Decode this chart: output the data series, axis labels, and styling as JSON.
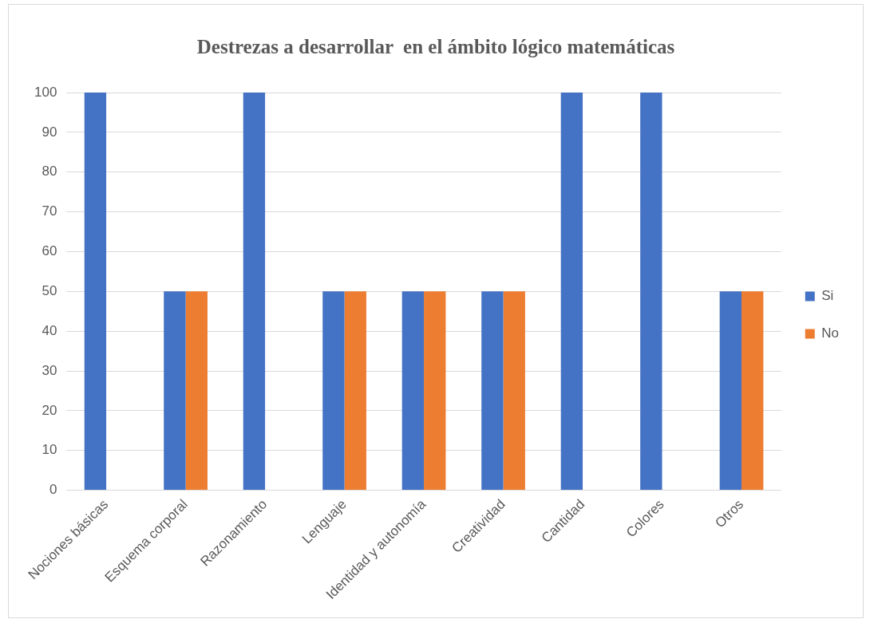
{
  "chart_data": {
    "type": "bar",
    "title": "Destrezas a desarrollar  en el ámbito lógico matemáticas",
    "categories": [
      "Nociones básicas",
      "Esquema corporal",
      "Razonamiento",
      "Lenguaje",
      "Identidad y autonomía",
      "Creatividad",
      "Cantidad",
      "Colores",
      "Otros"
    ],
    "series": [
      {
        "name": "Si",
        "color": "#4472c4",
        "values": [
          100,
          50,
          100,
          50,
          50,
          50,
          100,
          100,
          50
        ]
      },
      {
        "name": "No",
        "color": "#ed7d31",
        "values": [
          0,
          50,
          0,
          50,
          50,
          50,
          0,
          0,
          50
        ]
      }
    ],
    "ylim": [
      0,
      100
    ],
    "yticks": [
      0,
      10,
      20,
      30,
      40,
      50,
      60,
      70,
      80,
      90,
      100
    ],
    "grid": "y",
    "legend": "right"
  }
}
